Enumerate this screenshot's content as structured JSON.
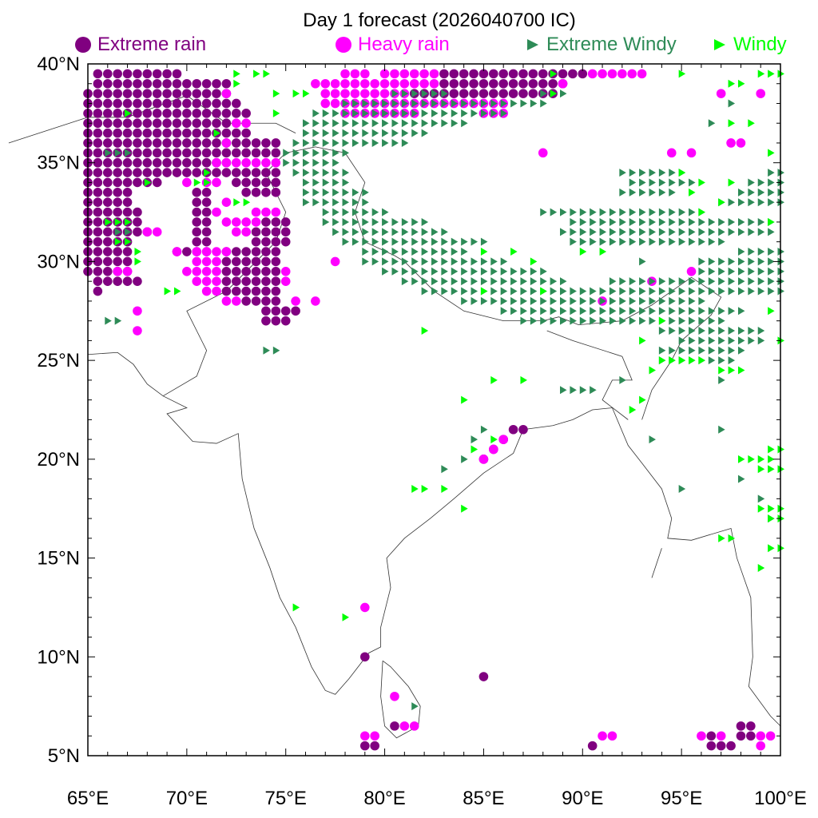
{
  "title": "Day 1 forecast (2026040700 IC)",
  "legend": [
    {
      "label": "Extreme rain",
      "color": "#800080",
      "marker": "circle"
    },
    {
      "label": "Heavy rain",
      "color": "#ff00ff",
      "marker": "circle"
    },
    {
      "label": "Extreme Windy",
      "color": "#2e8b57",
      "marker": "triangle-right"
    },
    {
      "label": "Windy",
      "color": "#00ff00",
      "marker": "triangle-right"
    }
  ],
  "map": {
    "lon_range": [
      65,
      100
    ],
    "lat_range": [
      5,
      40
    ],
    "x_ticks": [
      "65°E",
      "70°E",
      "75°E",
      "80°E",
      "85°E",
      "90°E",
      "95°E",
      "100°E"
    ],
    "y_ticks": [
      "5°N",
      "10°N",
      "15°N",
      "20°N",
      "25°N",
      "30°N",
      "35°N",
      "40°N"
    ],
    "grid_step_deg": 0.5
  },
  "markers": {
    "extreme_rain": {
      "runs": [
        [
          39.5,
          65.5,
          69.5
        ],
        [
          39.5,
          83,
          90
        ],
        [
          39,
          65.5,
          72
        ],
        [
          39,
          83,
          89
        ],
        [
          38.5,
          65,
          72
        ],
        [
          38.5,
          81.5,
          88.5
        ],
        [
          38,
          65,
          72.5
        ],
        [
          37.5,
          65,
          73
        ],
        [
          37,
          65,
          72
        ],
        [
          36.5,
          65,
          73
        ],
        [
          36,
          65,
          74.5
        ],
        [
          35.5,
          65,
          74.5
        ],
        [
          35,
          65,
          72
        ],
        [
          34.5,
          65,
          74.5
        ],
        [
          34,
          65,
          68.5
        ],
        [
          34,
          72.5,
          74.5
        ],
        [
          33.5,
          65,
          67
        ],
        [
          33.5,
          70.5,
          71
        ],
        [
          33.5,
          73,
          74.5
        ],
        [
          33,
          65,
          67
        ],
        [
          33,
          70.5,
          71
        ],
        [
          32.5,
          65,
          67.5
        ],
        [
          32.5,
          70.5,
          71
        ],
        [
          32,
          65,
          67.5
        ],
        [
          32,
          70.5,
          71
        ],
        [
          32,
          74,
          75
        ],
        [
          31.5,
          65,
          68
        ],
        [
          31.5,
          70.5,
          71
        ],
        [
          31.5,
          73.5,
          75
        ],
        [
          31,
          65,
          67
        ],
        [
          31,
          70.5,
          71
        ],
        [
          31,
          73.5,
          75
        ],
        [
          30.5,
          65,
          67
        ],
        [
          30.5,
          69.5,
          71
        ],
        [
          30.5,
          72,
          74.5
        ],
        [
          30,
          65,
          67
        ],
        [
          30,
          72,
          74.5
        ],
        [
          29.5,
          65,
          67
        ],
        [
          29.5,
          72,
          74.5
        ],
        [
          29,
          65.5,
          67.5
        ],
        [
          29,
          72,
          74.5
        ],
        [
          28.5,
          65.5,
          65.5
        ],
        [
          28.5,
          72,
          74.5
        ],
        [
          28,
          73,
          74.5
        ],
        [
          27.5,
          74,
          75.5
        ],
        [
          27,
          74,
          75
        ]
      ],
      "points": [
        [
          79,
          10
        ],
        [
          85,
          9
        ],
        [
          90.5,
          5.5
        ],
        [
          79,
          5.5
        ],
        [
          79.5,
          5.5
        ],
        [
          80.5,
          6.5
        ],
        [
          86,
          21
        ],
        [
          86.5,
          21.5
        ],
        [
          87,
          21.5
        ],
        [
          85.5,
          20.5
        ],
        [
          85,
          20
        ],
        [
          96.5,
          5.5
        ],
        [
          97,
          5.5
        ],
        [
          97.5,
          5.5
        ],
        [
          96.5,
          6
        ],
        [
          98,
          6
        ],
        [
          98.5,
          6
        ],
        [
          98,
          6.5
        ],
        [
          98.5,
          6.5
        ]
      ]
    },
    "heavy_rain": {
      "runs": [
        [
          39.5,
          78,
          79
        ],
        [
          39.5,
          80,
          82.5
        ],
        [
          39.5,
          90.5,
          93
        ],
        [
          39,
          76.5,
          82.5
        ],
        [
          39,
          89,
          89
        ],
        [
          38.5,
          77,
          81
        ],
        [
          38.5,
          72,
          72
        ],
        [
          38,
          77,
          86
        ],
        [
          37.5,
          78,
          81.5
        ],
        [
          37.5,
          85,
          86
        ],
        [
          37,
          72.5,
          73
        ],
        [
          36,
          72,
          72
        ],
        [
          35,
          71.5,
          74.5
        ],
        [
          34,
          70,
          70
        ],
        [
          34,
          71,
          71.5
        ],
        [
          33,
          72,
          72
        ],
        [
          32.5,
          71.5,
          71.5
        ],
        [
          32.5,
          73.5,
          74.5
        ],
        [
          32,
          72,
          73.5
        ],
        [
          31.5,
          72.5,
          73
        ],
        [
          31.5,
          68,
          68.5
        ],
        [
          30.5,
          70.5,
          72
        ],
        [
          30,
          70.5,
          71.5
        ],
        [
          29.5,
          70,
          71.5
        ],
        [
          29.5,
          66.5,
          67
        ],
        [
          29,
          70.5,
          71.5
        ],
        [
          28.5,
          71,
          71.5
        ],
        [
          28,
          72,
          72.5
        ]
      ],
      "points": [
        [
          75,
          29.5
        ],
        [
          75,
          29
        ],
        [
          75.5,
          28
        ],
        [
          79,
          12.5
        ],
        [
          80.5,
          8
        ],
        [
          81,
          6.5
        ],
        [
          81.5,
          6.5
        ],
        [
          79,
          6
        ],
        [
          79.5,
          6
        ],
        [
          91,
          6
        ],
        [
          91.5,
          6
        ],
        [
          96,
          6
        ],
        [
          97,
          6
        ],
        [
          99,
          6
        ],
        [
          99.5,
          6
        ],
        [
          99,
          5.5
        ],
        [
          88,
          35.5
        ],
        [
          94.5,
          35.5
        ],
        [
          95.5,
          35.5
        ],
        [
          97,
          38.5
        ],
        [
          99,
          38.5
        ],
        [
          97.5,
          36
        ],
        [
          98,
          36
        ],
        [
          93.5,
          29
        ],
        [
          95.5,
          29.5
        ],
        [
          91,
          28
        ],
        [
          85,
          20
        ],
        [
          85.5,
          20.5
        ],
        [
          86,
          21
        ],
        [
          67.5,
          27.5
        ],
        [
          67.5,
          26.5
        ],
        [
          77.5,
          30
        ],
        [
          76.5,
          28
        ],
        [
          69.5,
          30.5
        ]
      ]
    },
    "extreme_windy": {
      "runs": [
        [
          38.5,
          80.5,
          83
        ],
        [
          38.5,
          88,
          89
        ],
        [
          38,
          78,
          88
        ],
        [
          37.5,
          76.5,
          86
        ],
        [
          37,
          76,
          84
        ],
        [
          36.5,
          76,
          82
        ],
        [
          36,
          75.5,
          81
        ],
        [
          35.5,
          75,
          78
        ],
        [
          35,
          75,
          77.5
        ],
        [
          34.5,
          75.5,
          78
        ],
        [
          34.5,
          92,
          95
        ],
        [
          34.5,
          99.5,
          100
        ],
        [
          34,
          76,
          78
        ],
        [
          34,
          92.5,
          95.5
        ],
        [
          34,
          98.5,
          100
        ],
        [
          33.5,
          76,
          79
        ],
        [
          33.5,
          92,
          94.5
        ],
        [
          33.5,
          98,
          100
        ],
        [
          33,
          76,
          79
        ],
        [
          33,
          97,
          100
        ],
        [
          32.5,
          77,
          80
        ],
        [
          32.5,
          88,
          96
        ],
        [
          32,
          77,
          82
        ],
        [
          32,
          89.5,
          99.5
        ],
        [
          31.5,
          77.5,
          83
        ],
        [
          31.5,
          89,
          99.5
        ],
        [
          31,
          78,
          85
        ],
        [
          31,
          89.5,
          97
        ],
        [
          30.5,
          79,
          84
        ],
        [
          30.5,
          98,
          100
        ],
        [
          30,
          79,
          86
        ],
        [
          30,
          96,
          100
        ],
        [
          29.5,
          80,
          88
        ],
        [
          29.5,
          96,
          100
        ],
        [
          29,
          81,
          89
        ],
        [
          29,
          91.5,
          100
        ],
        [
          28.5,
          82,
          100
        ],
        [
          28,
          84,
          96
        ],
        [
          27.5,
          86,
          98
        ],
        [
          27,
          87,
          97
        ],
        [
          26.5,
          94,
          99
        ],
        [
          26,
          95,
          99
        ],
        [
          25.5,
          94,
          98
        ],
        [
          25,
          94,
          97.5
        ],
        [
          23.5,
          89,
          90.5
        ]
      ],
      "points": [
        [
          66,
          35.5
        ],
        [
          66.5,
          35.5
        ],
        [
          67,
          35.5
        ],
        [
          66.5,
          31.5
        ],
        [
          67,
          31.5
        ],
        [
          66,
          27
        ],
        [
          66.5,
          27
        ],
        [
          74,
          25.5
        ],
        [
          74.5,
          25.5
        ],
        [
          92,
          24
        ],
        [
          97,
          24
        ],
        [
          93.5,
          21
        ],
        [
          95,
          18.5
        ],
        [
          97,
          21.5
        ],
        [
          98,
          19
        ],
        [
          99,
          18
        ],
        [
          99.5,
          17
        ],
        [
          81.5,
          7.5
        ],
        [
          85,
          21.5
        ],
        [
          84.5,
          21
        ],
        [
          84,
          20
        ],
        [
          83,
          19.5
        ],
        [
          93,
          30
        ],
        [
          97.5,
          38
        ],
        [
          96.5,
          37
        ]
      ]
    },
    "windy": {
      "runs": [
        [
          39.5,
          99,
          100
        ],
        [
          39,
          97.5,
          98
        ],
        [
          38.5,
          75.5,
          76
        ],
        [
          33,
          72.5,
          73
        ],
        [
          32,
          66,
          67
        ],
        [
          31,
          66.5,
          67
        ],
        [
          28.5,
          69,
          69.5
        ],
        [
          25,
          94,
          96
        ],
        [
          24.5,
          97,
          98
        ],
        [
          20.5,
          99.5,
          100
        ],
        [
          20,
          98,
          99.5
        ],
        [
          19.5,
          99,
          100
        ],
        [
          17.5,
          99,
          100
        ],
        [
          17,
          99.5,
          100
        ],
        [
          16,
          97,
          97.5
        ],
        [
          15.5,
          99.5,
          100
        ]
      ],
      "points": [
        [
          72.5,
          39.5
        ],
        [
          73.5,
          39.5
        ],
        [
          74,
          39.5
        ],
        [
          88.5,
          39.5
        ],
        [
          95,
          39.5
        ],
        [
          72.5,
          39
        ],
        [
          74.5,
          38.5
        ],
        [
          88.5,
          38.5
        ],
        [
          67,
          37.5
        ],
        [
          74.5,
          37.5
        ],
        [
          71.5,
          36.5
        ],
        [
          71,
          34
        ],
        [
          70.5,
          34
        ],
        [
          71,
          34.5
        ],
        [
          68,
          34
        ],
        [
          67.5,
          30.5
        ],
        [
          67.5,
          30
        ],
        [
          85,
          28.5
        ],
        [
          87.5,
          30
        ],
        [
          88,
          28.5
        ],
        [
          94,
          27
        ],
        [
          93,
          26
        ],
        [
          93.5,
          24.5
        ],
        [
          93,
          23
        ],
        [
          92.5,
          22.5
        ],
        [
          82,
          26.5
        ],
        [
          84,
          23
        ],
        [
          85.5,
          24
        ],
        [
          87,
          24
        ],
        [
          82,
          18.5
        ],
        [
          81.5,
          18.5
        ],
        [
          83,
          18.5
        ],
        [
          84,
          17.5
        ],
        [
          75.5,
          12.5
        ],
        [
          78,
          12
        ],
        [
          85.5,
          21
        ],
        [
          84.5,
          20.5
        ],
        [
          99,
          14.5
        ],
        [
          100,
          26
        ],
        [
          99.5,
          27.5
        ],
        [
          95,
          34.5
        ],
        [
          95.5,
          33.5
        ],
        [
          96,
          32.5
        ],
        [
          97,
          33
        ],
        [
          99.5,
          32
        ],
        [
          85,
          30.5
        ],
        [
          86.5,
          30.5
        ],
        [
          90,
          30.5
        ],
        [
          91,
          30.5
        ],
        [
          97.5,
          37
        ],
        [
          98.5,
          37
        ],
        [
          99.5,
          35.5
        ],
        [
          97.5,
          34
        ],
        [
          96,
          34
        ]
      ]
    }
  }
}
